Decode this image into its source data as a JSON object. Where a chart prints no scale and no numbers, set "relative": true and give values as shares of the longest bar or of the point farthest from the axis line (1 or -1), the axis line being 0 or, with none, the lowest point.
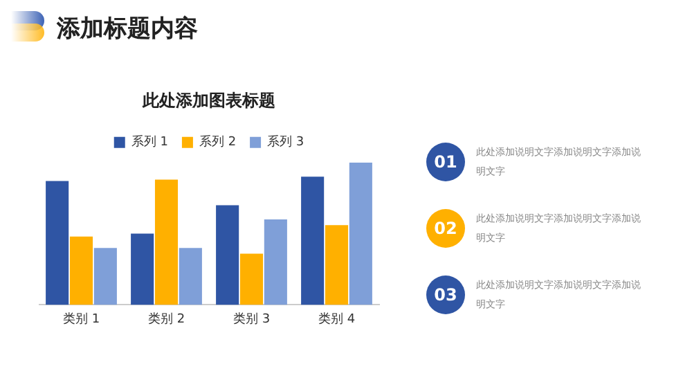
{
  "chart_data": {
    "type": "bar",
    "title": "添加标题内容",
    "subtitle": "此处添加图表标题",
    "categories": [
      "类别 1",
      "类别 2",
      "类别 3",
      "类别 4"
    ],
    "series": [
      {
        "name": "系列 1",
        "color": "#2f55a4",
        "values": [
          0.87,
          0.5,
          0.7,
          0.9
        ]
      },
      {
        "name": "系列 2",
        "color": "#ffb000",
        "values": [
          0.48,
          0.88,
          0.36,
          0.56
        ]
      },
      {
        "name": "系列 3",
        "color": "#7f9fd8",
        "values": [
          0.4,
          0.4,
          0.6,
          1
        ]
      }
    ],
    "relative": true,
    "grid": false,
    "legend": "top",
    "annotations": [
      "01",
      "此处添加说明文字添加说明文字添加说明文字",
      "02",
      "此处添加说明文字添加说明文字添加说明文字",
      "03",
      "此处添加说明文字添加说明文字添加说明文字"
    ]
  }
}
